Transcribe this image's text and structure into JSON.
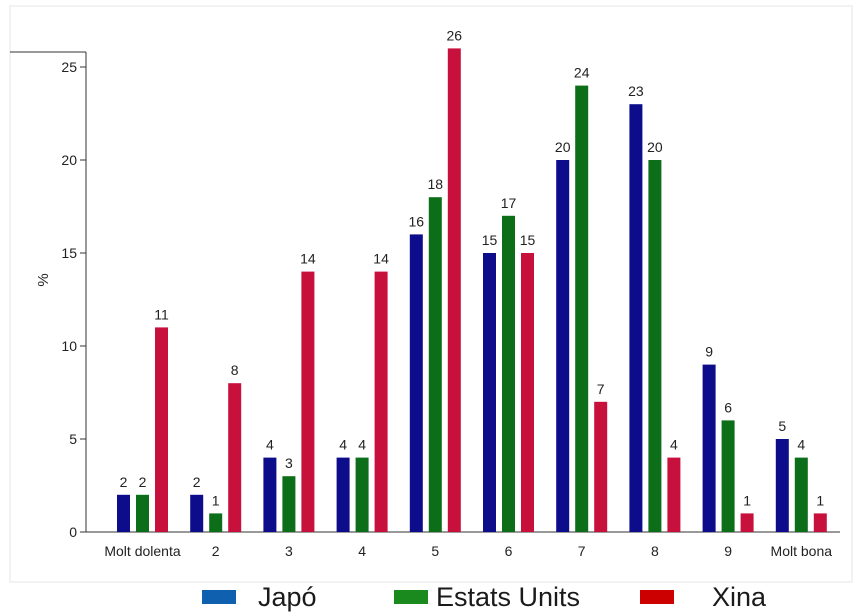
{
  "chart_data": {
    "type": "bar",
    "title": "",
    "xlabel": "",
    "ylabel": "%",
    "ylim": [
      0,
      28
    ],
    "yticks": [
      0,
      5,
      10,
      15,
      20,
      25
    ],
    "grid": false,
    "legend_position": "bottom",
    "categories": [
      "Molt dolenta",
      "2",
      "3",
      "4",
      "5",
      "6",
      "7",
      "8",
      "9",
      "Molt bona"
    ],
    "series": [
      {
        "name": "Japó",
        "color": "#0d0d8c",
        "legend_color": "#1060b0",
        "values": [
          2,
          2,
          4,
          4,
          16,
          15,
          20,
          23,
          9,
          5
        ]
      },
      {
        "name": "Estats Units",
        "color": "#0c6e18",
        "legend_color": "#1a8a1e",
        "values": [
          2,
          1,
          3,
          4,
          18,
          17,
          24,
          20,
          6,
          4
        ]
      },
      {
        "name": "Xina",
        "color": "#c8103c",
        "legend_color": "#cc0000",
        "values": [
          11,
          8,
          14,
          14,
          26,
          15,
          7,
          4,
          1,
          1
        ]
      }
    ]
  }
}
